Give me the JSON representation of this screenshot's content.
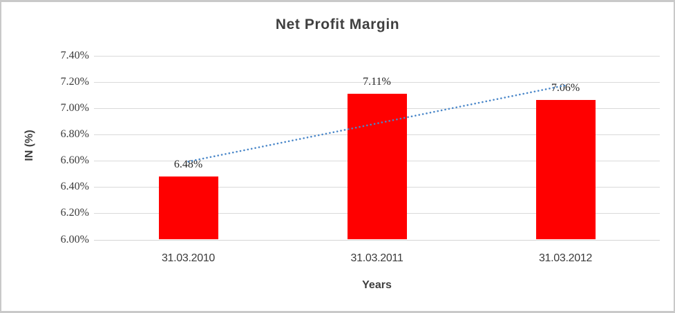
{
  "chart_data": {
    "type": "bar",
    "title": "Net Profit Margin",
    "xlabel": "Years",
    "ylabel": "IN (%)",
    "categories": [
      "31.03.2010",
      "31.03.2011",
      "31.03.2012"
    ],
    "values": [
      6.48,
      7.11,
      7.06
    ],
    "value_labels": [
      "6.48%",
      "7.11%",
      "7.06%"
    ],
    "ylim": [
      6.0,
      7.4
    ],
    "ytick_step": 0.2,
    "ytick_labels": [
      "6.00%",
      "6.20%",
      "6.40%",
      "6.60%",
      "6.80%",
      "7.00%",
      "7.20%",
      "7.40%"
    ],
    "grid": true,
    "legend_position": "none",
    "bar_color": "#FF0000",
    "gridline_color": "#D9D9D9",
    "trendline": {
      "type": "linear",
      "style": "dotted",
      "color": "#4A87C9"
    }
  }
}
